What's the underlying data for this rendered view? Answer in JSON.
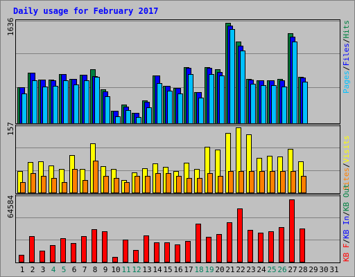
{
  "chart_data": [
    {
      "type": "bar",
      "title": "Daily usage for February 2017",
      "ymax_label": "1636",
      "ylabel": "Pages / Files / Hits",
      "categories": [
        "1",
        "2",
        "3",
        "4",
        "5",
        "6",
        "7",
        "8",
        "9",
        "10",
        "11",
        "12",
        "13",
        "14",
        "15",
        "16",
        "17",
        "18",
        "19",
        "20",
        "21",
        "22",
        "23",
        "24",
        "25",
        "26",
        "27",
        "28",
        "29",
        "30",
        "31"
      ],
      "weekend_days": [
        "4",
        "5",
        "11",
        "12",
        "18",
        "19",
        "25",
        "26"
      ],
      "ylim": [
        0,
        1636
      ],
      "series": [
        {
          "name": "Hits",
          "color": "#008040",
          "values": [
            580,
            810,
            700,
            700,
            780,
            710,
            775,
            860,
            540,
            200,
            300,
            170,
            360,
            760,
            600,
            560,
            900,
            500,
            890,
            860,
            1600,
            1300,
            710,
            690,
            690,
            710,
            1440,
            740,
            0,
            0,
            0
          ]
        },
        {
          "name": "Files",
          "color": "#0000ff",
          "values": [
            580,
            810,
            700,
            690,
            780,
            710,
            775,
            750,
            510,
            200,
            260,
            170,
            340,
            760,
            600,
            560,
            880,
            500,
            880,
            820,
            1560,
            1240,
            700,
            680,
            680,
            690,
            1380,
            730,
            0,
            0,
            0
          ]
        },
        {
          "name": "Pages",
          "color": "#00c0ff",
          "values": [
            470,
            690,
            590,
            600,
            690,
            620,
            680,
            745,
            430,
            110,
            210,
            100,
            250,
            640,
            520,
            470,
            790,
            410,
            790,
            760,
            1500,
            1160,
            630,
            610,
            610,
            590,
            1300,
            660,
            0,
            0,
            0
          ]
        }
      ]
    },
    {
      "type": "bar",
      "ymax_label": "157",
      "ylabel": "Visits / Sites",
      "ylim": [
        0,
        157
      ],
      "series": [
        {
          "name": "Visits",
          "color": "#ffff00",
          "values": [
            50,
            72,
            73,
            64,
            55,
            89,
            55,
            116,
            62,
            55,
            30,
            47,
            57,
            68,
            60,
            50,
            70,
            55,
            108,
            101,
            140,
            153,
            138,
            81,
            86,
            85,
            103,
            73,
            0,
            0,
            0
          ]
        },
        {
          "name": "Sites",
          "color": "#ff8000",
          "values": [
            25,
            45,
            40,
            35,
            25,
            55,
            30,
            75,
            40,
            35,
            25,
            40,
            40,
            45,
            45,
            40,
            35,
            35,
            45,
            40,
            50,
            50,
            50,
            50,
            50,
            50,
            50,
            40,
            0,
            0,
            0
          ]
        }
      ]
    },
    {
      "type": "bar",
      "ymax_label": "64584",
      "ylabel": "KB F / KB In / KB Out",
      "ylim": [
        0,
        64584
      ],
      "series": [
        {
          "name": "KB F",
          "color": "#ff0000",
          "values": [
            6500,
            25000,
            10800,
            16000,
            23000,
            18500,
            25000,
            32000,
            30000,
            4500,
            22000,
            11500,
            26000,
            18800,
            18800,
            16800,
            20600,
            37300,
            24600,
            27000,
            38500,
            52400,
            31500,
            28600,
            30000,
            34000,
            61300,
            32300,
            0,
            0,
            0
          ]
        }
      ]
    }
  ]
}
